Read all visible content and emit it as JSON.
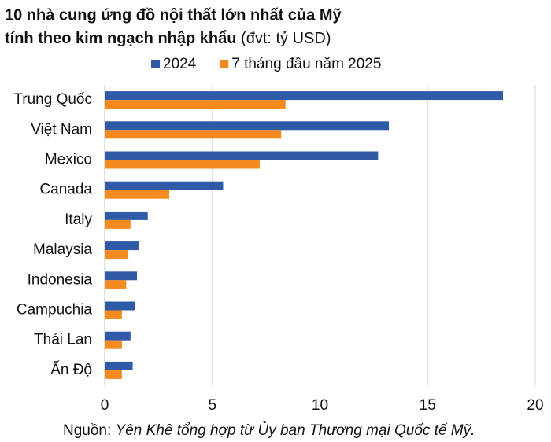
{
  "chart_data": {
    "type": "hbar",
    "title": [
      "10 nhà cung ứng đồ nội thất lớn nhất của Mỹ",
      "tính theo kim ngạch nhập khẩu"
    ],
    "subtitle": "(đvt: tỷ USD)",
    "categories": [
      "Trung Quốc",
      "Việt Nam",
      "Mexico",
      "Canada",
      "Italy",
      "Malaysia",
      "Indonesia",
      "Campuchia",
      "Thái Lan",
      "Ấn Độ"
    ],
    "series": [
      {
        "name": "2024",
        "color": "#2e5aa7",
        "values": [
          18.5,
          13.2,
          12.7,
          5.5,
          2.0,
          1.6,
          1.5,
          1.4,
          1.2,
          1.3
        ]
      },
      {
        "name": "7 tháng đầu năm 2025",
        "color": "#f58a1f",
        "values": [
          8.4,
          8.2,
          7.2,
          3.0,
          1.2,
          1.1,
          1.0,
          0.8,
          0.8,
          0.8
        ]
      }
    ],
    "xlim": [
      0,
      20
    ],
    "xticks": [
      0,
      5,
      10,
      15,
      20
    ],
    "grid": true,
    "legend": "top",
    "source_label": "Nguồn:",
    "source": "Yên Khê tổng hợp từ Ủy ban Thương mại Quốc tế Mỹ."
  }
}
